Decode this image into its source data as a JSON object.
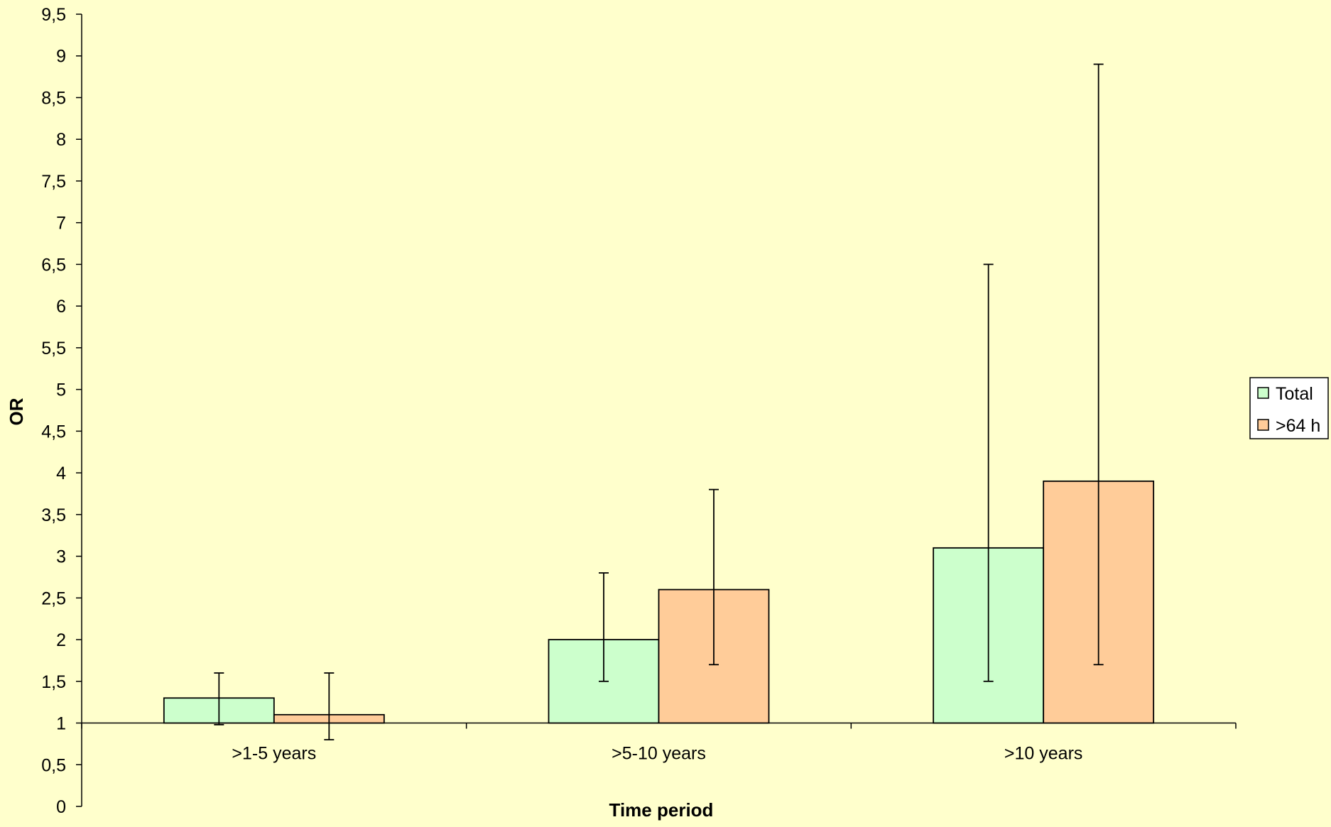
{
  "chart_data": {
    "type": "bar",
    "title": "",
    "xlabel": "Time period",
    "ylabel": "OR",
    "ylim": [
      0,
      9.5
    ],
    "baseline": 1,
    "grid": false,
    "legend_position": "right",
    "yticks": [
      "0",
      "0,5",
      "1",
      "1,5",
      "2",
      "2,5",
      "3",
      "3,5",
      "4",
      "4,5",
      "5",
      "5,5",
      "6",
      "6,5",
      "7",
      "7,5",
      "8",
      "8,5",
      "9",
      "9,5"
    ],
    "categories": [
      ">1-5 years",
      ">5-10 years",
      ">10 years"
    ],
    "series": [
      {
        "name": "Total",
        "color": "#CCFFCC",
        "values": [
          1.3,
          2.0,
          3.1
        ],
        "error_low": [
          0.98,
          1.5,
          1.5
        ],
        "error_high": [
          1.6,
          2.8,
          6.5
        ]
      },
      {
        "name": ">64 h",
        "color": "#FFCC99",
        "values": [
          1.1,
          2.6,
          3.9
        ],
        "error_low": [
          0.8,
          1.7,
          1.7
        ],
        "error_high": [
          1.6,
          3.8,
          8.9
        ]
      }
    ]
  }
}
